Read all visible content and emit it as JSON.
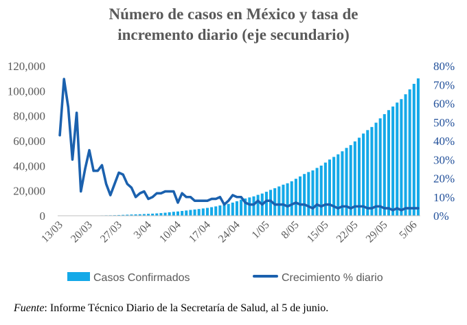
{
  "chart_data": {
    "type": "bar+line",
    "title_line1": "Número de casos en México y tasa de",
    "title_line2": "incremento diario (eje secundario)",
    "start_date": "2020-03-13",
    "end_date": "2020-06-05",
    "x_tick_labels": [
      "13/03",
      "20/03",
      "27/03",
      "3/04",
      "10/04",
      "17/04",
      "24/04",
      "1/05",
      "8/05",
      "15/05",
      "22/05",
      "29/05",
      "5/06"
    ],
    "y_left": {
      "min": 0,
      "max": 120000,
      "step": 20000,
      "tick_labels": [
        "0",
        "20,000",
        "40,000",
        "60,000",
        "80,000",
        "100,000",
        "120,000"
      ]
    },
    "y_right": {
      "min": 0,
      "max": 80,
      "step": 10,
      "tick_labels": [
        "0%",
        "10%",
        "20%",
        "30%",
        "40%",
        "50%",
        "60%",
        "70%",
        "80%"
      ]
    },
    "series": [
      {
        "name": "Casos Confirmados",
        "kind": "bar",
        "axis": "left",
        "color": "#14a9e8",
        "values": [
          15,
          26,
          41,
          53,
          82,
          93,
          118,
          164,
          203,
          251,
          316,
          367,
          405,
          475,
          585,
          717,
          848,
          993,
          1094,
          1215,
          1378,
          1510,
          1688,
          1890,
          2143,
          2439,
          2785,
          3181,
          3441,
          3844,
          4219,
          4661,
          5014,
          5399,
          5847,
          6297,
          6875,
          7497,
          8261,
          8772,
          9501,
          10544,
          11633,
          12872,
          13842,
          14677,
          15529,
          16752,
          17799,
          19224,
          20739,
          22088,
          23471,
          24905,
          26025,
          27634,
          29616,
          31522,
          33460,
          35022,
          36327,
          38324,
          40186,
          42595,
          45032,
          47144,
          49219,
          51633,
          54346,
          56594,
          59567,
          62527,
          65856,
          68620,
          71105,
          74560,
          78023,
          81400,
          84627,
          87512,
          90664,
          93435,
          97326,
          101238,
          105680,
          110026
        ]
      },
      {
        "name": "Crecimiento % diario",
        "kind": "line",
        "axis": "right",
        "color": "#1b61ae",
        "values": [
          43,
          73,
          58,
          30,
          55,
          13,
          25,
          35,
          24,
          24,
          27,
          17,
          11,
          17,
          23,
          22,
          17,
          15,
          10,
          12,
          13,
          9,
          10,
          12,
          12,
          13,
          13,
          13,
          7,
          12,
          10,
          10,
          8,
          8,
          8,
          8,
          9,
          9,
          10,
          6,
          8,
          11,
          10,
          10,
          7,
          6,
          6,
          8,
          6,
          8,
          8,
          6,
          6,
          6,
          5,
          6,
          7,
          6,
          6,
          5,
          4,
          6,
          5,
          6,
          6,
          5,
          4,
          5,
          5,
          4,
          5,
          5,
          5,
          4,
          4,
          5,
          5,
          4,
          4,
          3,
          4,
          3,
          4,
          4,
          4,
          4
        ]
      }
    ],
    "legend": {
      "placement": "bottom",
      "items": [
        "Casos Confirmados",
        "Crecimiento % diario"
      ]
    },
    "grid": false
  },
  "source": {
    "label": "Fuente",
    "text": ": Informe Técnico Diario de la Secretaría de Salud, al 5 de junio."
  }
}
